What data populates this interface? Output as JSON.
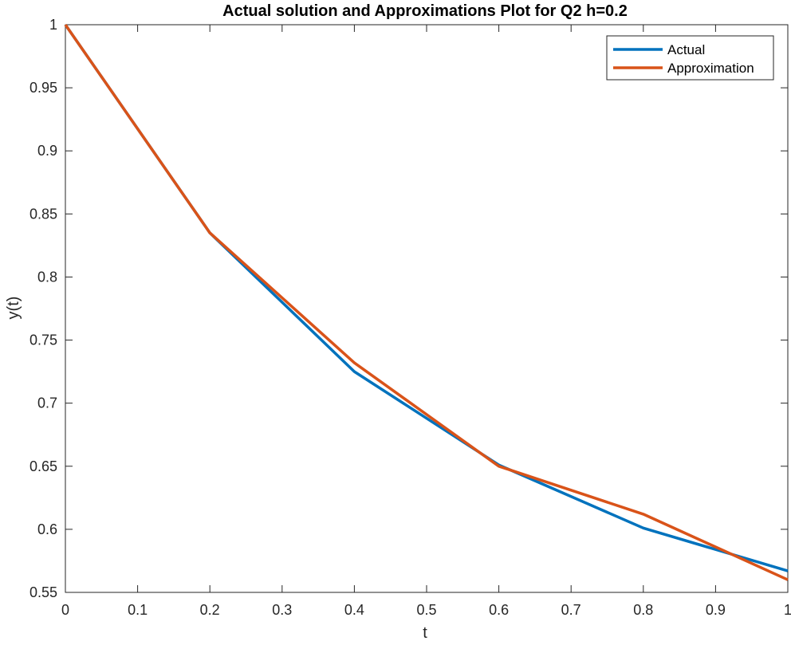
{
  "chart_data": {
    "type": "line",
    "title": "Actual solution and Approximations Plot for Q2 h=0.2",
    "xlabel": "t",
    "ylabel": "y(t)",
    "xlim": [
      0,
      1
    ],
    "ylim": [
      0.55,
      1
    ],
    "xticks": [
      "0",
      "0.1",
      "0.2",
      "0.3",
      "0.4",
      "0.5",
      "0.6",
      "0.7",
      "0.8",
      "0.9",
      "1"
    ],
    "yticks": [
      "0.55",
      "0.6",
      "0.65",
      "0.7",
      "0.75",
      "0.8",
      "0.85",
      "0.9",
      "0.95",
      "1"
    ],
    "grid": false,
    "legend_position": "top-right",
    "series": [
      {
        "name": "Actual",
        "color": "#0072BD",
        "x": [
          0,
          0.2,
          0.4,
          0.6,
          0.8,
          1.0
        ],
        "y": [
          1.0,
          0.835,
          0.725,
          0.651,
          0.601,
          0.567
        ]
      },
      {
        "name": "Approximation",
        "color": "#D95319",
        "x": [
          0,
          0.2,
          0.4,
          0.6,
          0.8,
          1.0
        ],
        "y": [
          1.0,
          0.835,
          0.732,
          0.65,
          0.612,
          0.56
        ]
      }
    ]
  }
}
